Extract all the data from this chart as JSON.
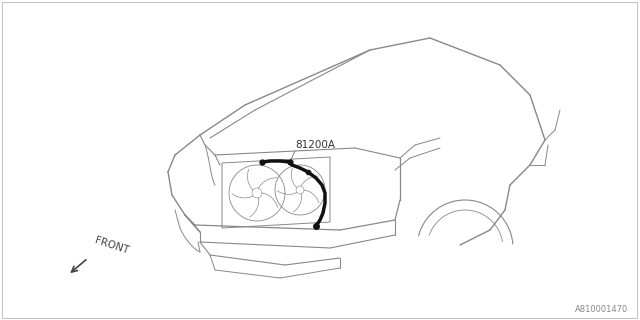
{
  "bg_color": "#ffffff",
  "line_color": "#888888",
  "harness_color": "#111111",
  "label_81200A": "81200A",
  "label_front": "FRONT",
  "label_ref": "A810001470",
  "fig_width": 6.4,
  "fig_height": 3.2,
  "dpi": 100
}
